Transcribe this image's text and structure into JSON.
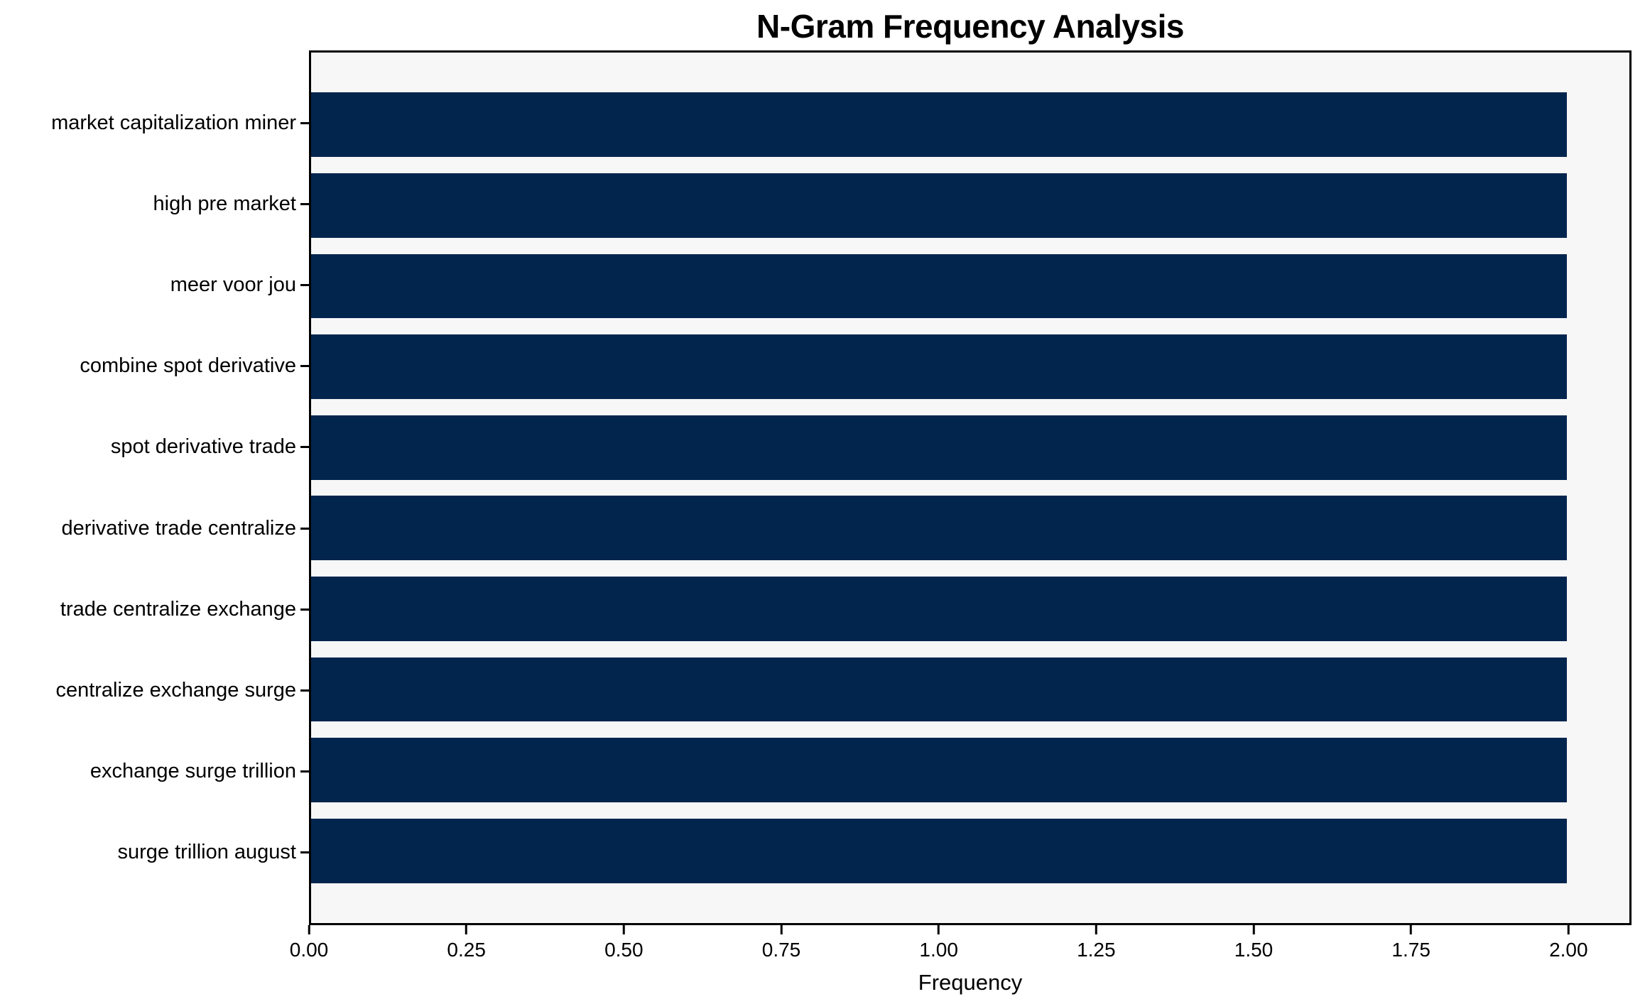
{
  "chart_data": {
    "type": "bar",
    "orientation": "horizontal",
    "title": "N-Gram Frequency Analysis",
    "xlabel": "Frequency",
    "ylabel": "",
    "categories": [
      "market capitalization miner",
      "high pre market",
      "meer voor jou",
      "combine spot derivative",
      "spot derivative trade",
      "derivative trade centralize",
      "trade centralize exchange",
      "centralize exchange surge",
      "exchange surge trillion",
      "surge trillion august"
    ],
    "values": [
      2,
      2,
      2,
      2,
      2,
      2,
      2,
      2,
      2,
      2
    ],
    "xlim": [
      0,
      2.1
    ],
    "xticks": [
      {
        "value": 0.0,
        "label": "0.00"
      },
      {
        "value": 0.25,
        "label": "0.25"
      },
      {
        "value": 0.5,
        "label": "0.50"
      },
      {
        "value": 0.75,
        "label": "0.75"
      },
      {
        "value": 1.0,
        "label": "1.00"
      },
      {
        "value": 1.25,
        "label": "1.25"
      },
      {
        "value": 1.5,
        "label": "1.50"
      },
      {
        "value": 1.75,
        "label": "1.75"
      },
      {
        "value": 2.0,
        "label": "2.00"
      }
    ],
    "grid": false,
    "legend": null,
    "colors": {
      "bar": "#02254e",
      "plot_background": "#f7f7f8",
      "figure_background": "#ffffff",
      "spine": "#000000",
      "text": "#000000"
    }
  }
}
